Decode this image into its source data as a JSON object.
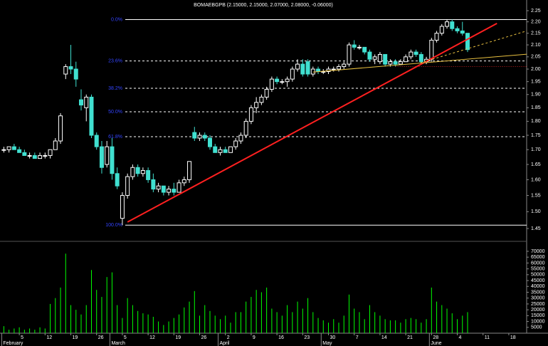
{
  "chart_data": {
    "type": "candlestick",
    "title": "BOMAEBGPB (2.15000, 2.15000, 2.07000, 2.08000, -0.06000)",
    "categories": [
      null,
      null,
      null,
      "5",
      null,
      null,
      null,
      null,
      "12",
      null,
      null,
      null,
      null,
      "19",
      null,
      null,
      null,
      null,
      "26",
      null,
      null,
      null,
      null,
      "5",
      null,
      null,
      null,
      null,
      "12",
      null,
      null,
      null,
      null,
      "19",
      null,
      null,
      null,
      null,
      "26",
      null,
      null,
      null,
      null,
      "2",
      null,
      null,
      null,
      null,
      "9",
      null,
      null,
      null,
      null,
      "16",
      null,
      null,
      null,
      null,
      "23",
      null,
      null,
      null,
      null,
      "30",
      null,
      null,
      null,
      null,
      "7",
      null,
      null,
      null,
      null,
      "14",
      null,
      null,
      null,
      null,
      "21",
      null,
      null,
      null,
      null,
      "28",
      null,
      null,
      null,
      null,
      "4",
      null,
      null,
      null,
      null,
      "11",
      null,
      null,
      null,
      null,
      "18",
      null,
      null,
      null,
      null
    ],
    "months": [
      "February",
      null,
      null,
      null,
      null,
      null,
      null,
      null,
      null,
      null,
      null,
      null,
      null,
      null,
      null,
      null,
      null,
      null,
      null,
      null,
      null,
      "March",
      null,
      null,
      null,
      null,
      null,
      null,
      null,
      null,
      null,
      null,
      null,
      null,
      null,
      null,
      null,
      null,
      null,
      null,
      null,
      null,
      "April",
      null,
      null,
      null,
      null,
      null,
      null,
      null,
      null,
      null,
      null,
      null,
      null,
      null,
      null,
      null,
      null,
      null,
      null,
      null,
      "May",
      null,
      null,
      null,
      null,
      null,
      null,
      null,
      null,
      null,
      null,
      null,
      null,
      null,
      null,
      null,
      null,
      null,
      null,
      null,
      null,
      "June",
      null,
      null,
      null,
      null,
      null,
      null,
      null,
      null,
      null,
      null,
      null,
      null,
      null,
      null,
      null
    ],
    "open": [
      1.7,
      1.7,
      1.71,
      1.7,
      1.69,
      1.68,
      1.68,
      1.67,
      1.68,
      1.68,
      1.7,
      1.73,
      1.98,
      2.01,
      2.0,
      1.88,
      1.85,
      1.89,
      1.75,
      1.71,
      1.65,
      1.71,
      1.62,
      1.48,
      1.55,
      1.61,
      1.64,
      1.62,
      1.63,
      1.6,
      1.57,
      1.58,
      1.56,
      1.57,
      1.56,
      1.59,
      1.6,
      1.76,
      1.74,
      1.75,
      1.74,
      1.71,
      1.69,
      1.7,
      1.69,
      1.71,
      1.73,
      1.75,
      1.8,
      1.85,
      1.87,
      1.89,
      1.92,
      1.96,
      1.95,
      1.95,
      1.96,
      2.0,
      2.02,
      2.03,
      1.98,
      2.0,
      1.99,
      1.99,
      2.0,
      2.0,
      2.01,
      2.02,
      2.1,
      2.09,
      2.09,
      2.07,
      2.04,
      2.03,
      2.06,
      2.02,
      2.03,
      2.02,
      2.03,
      2.05,
      2.07,
      2.06,
      2.03,
      2.04,
      2.12,
      2.15,
      2.18,
      2.2,
      2.17,
      2.16,
      2.15,
      null,
      null,
      null,
      null,
      null,
      null,
      null,
      null,
      null,
      null,
      null,
      null
    ],
    "high": [
      1.71,
      1.71,
      1.72,
      1.71,
      1.7,
      1.69,
      1.69,
      1.69,
      1.69,
      1.7,
      1.74,
      1.83,
      2.02,
      2.1,
      2.03,
      1.92,
      1.9,
      1.9,
      1.76,
      1.73,
      1.73,
      1.74,
      1.64,
      1.56,
      1.62,
      1.65,
      1.65,
      1.64,
      1.64,
      1.62,
      1.59,
      1.58,
      1.58,
      1.59,
      1.6,
      1.61,
      1.66,
      1.78,
      1.76,
      1.76,
      1.75,
      1.72,
      1.71,
      1.71,
      1.71,
      1.74,
      1.76,
      1.81,
      1.86,
      1.89,
      1.9,
      1.93,
      1.97,
      1.97,
      1.96,
      1.97,
      2.01,
      2.04,
      2.04,
      2.04,
      2.01,
      2.01,
      2.0,
      2.01,
      2.01,
      2.02,
      2.03,
      2.11,
      2.12,
      2.1,
      2.09,
      2.08,
      2.06,
      2.07,
      2.06,
      2.04,
      2.04,
      2.04,
      2.06,
      2.08,
      2.08,
      2.07,
      2.05,
      2.13,
      2.16,
      2.19,
      2.21,
      2.21,
      2.18,
      2.2,
      2.15,
      null,
      null,
      null,
      null,
      null,
      null,
      null,
      null,
      null,
      null,
      null,
      null
    ],
    "low": [
      1.69,
      1.69,
      1.7,
      1.69,
      1.68,
      1.67,
      1.67,
      1.67,
      1.67,
      1.67,
      1.7,
      1.72,
      1.96,
      1.98,
      1.93,
      1.84,
      1.8,
      1.74,
      1.7,
      1.62,
      1.64,
      1.6,
      1.57,
      1.46,
      1.54,
      1.6,
      1.61,
      1.61,
      1.59,
      1.56,
      1.56,
      1.55,
      1.55,
      1.55,
      1.56,
      1.58,
      1.59,
      1.73,
      1.73,
      1.73,
      1.7,
      1.69,
      1.68,
      1.69,
      1.69,
      1.7,
      1.72,
      1.74,
      1.79,
      1.83,
      1.86,
      1.88,
      1.91,
      1.94,
      1.94,
      1.93,
      1.95,
      1.99,
      1.97,
      1.97,
      1.97,
      1.98,
      1.98,
      1.98,
      1.99,
      1.99,
      2.0,
      2.01,
      2.08,
      2.08,
      2.06,
      2.03,
      2.02,
      2.02,
      2.01,
      2.01,
      2.01,
      2.02,
      2.03,
      2.04,
      2.05,
      2.02,
      2.02,
      2.03,
      2.11,
      2.14,
      2.17,
      2.16,
      2.15,
      2.14,
      2.07,
      null,
      null,
      null,
      null,
      null,
      null,
      null,
      null,
      null,
      null,
      null,
      null
    ],
    "close": [
      1.7,
      1.71,
      1.7,
      1.69,
      1.68,
      1.68,
      1.67,
      1.68,
      1.68,
      1.7,
      1.73,
      1.82,
      2.01,
      2.0,
      1.96,
      1.86,
      1.89,
      1.75,
      1.71,
      1.64,
      1.71,
      1.62,
      1.58,
      1.55,
      1.61,
      1.64,
      1.62,
      1.63,
      1.6,
      1.57,
      1.58,
      1.56,
      1.57,
      1.56,
      1.59,
      1.6,
      1.66,
      1.74,
      1.75,
      1.74,
      1.71,
      1.69,
      1.7,
      1.69,
      1.71,
      1.73,
      1.75,
      1.8,
      1.85,
      1.87,
      1.89,
      1.92,
      1.96,
      1.95,
      1.95,
      1.96,
      2.0,
      2.02,
      1.98,
      1.98,
      2.0,
      1.99,
      1.99,
      2.0,
      2.0,
      2.01,
      2.02,
      2.1,
      2.09,
      2.09,
      2.07,
      2.04,
      2.05,
      2.06,
      2.02,
      2.03,
      2.02,
      2.03,
      2.05,
      2.07,
      2.06,
      2.03,
      2.04,
      2.12,
      2.15,
      2.18,
      2.2,
      2.17,
      2.16,
      2.15,
      2.08,
      null,
      null,
      null,
      null,
      null,
      null,
      null,
      null,
      null,
      null,
      null,
      null
    ],
    "volume": [
      6000,
      3000,
      4000,
      5000,
      3000,
      4000,
      3000,
      5000,
      4000,
      25000,
      30000,
      39000,
      68000,
      24000,
      20000,
      16000,
      24000,
      54000,
      37000,
      31000,
      48000,
      52000,
      24000,
      13000,
      30000,
      24000,
      19000,
      17000,
      16000,
      14000,
      10000,
      7000,
      10000,
      13000,
      16000,
      22000,
      27000,
      36000,
      15000,
      24000,
      19000,
      15000,
      12000,
      15000,
      9000,
      18000,
      18000,
      27000,
      31000,
      37000,
      35000,
      39000,
      21000,
      18000,
      15000,
      24000,
      18000,
      27000,
      21000,
      30000,
      18000,
      13000,
      11000,
      9000,
      12000,
      9000,
      15000,
      33000,
      21000,
      18000,
      12000,
      24000,
      18000,
      15000,
      12000,
      11000,
      11000,
      9000,
      12000,
      13000,
      12000,
      9000,
      12000,
      39000,
      27000,
      24000,
      21000,
      17000,
      12000,
      15000,
      18000,
      null,
      null,
      null,
      null,
      null,
      null,
      null,
      null,
      null,
      null,
      null,
      null
    ],
    "up_color": "#ffffff",
    "down_color": "#40e0d0",
    "volume_color": "#00ff00",
    "log_scale": true,
    "ylim": [
      1.415,
      2.299
    ],
    "yticks": [
      1.45,
      {
        "value": 1.5,
        "label": "1.50"
      },
      1.55,
      {
        "value": 1.6,
        "label": "1.60"
      },
      1.65,
      {
        "value": 1.7,
        "label": "1.70"
      },
      1.75,
      {
        "value": 1.8,
        "label": "1.80"
      },
      1.85,
      {
        "value": 1.9,
        "label": "1.90"
      },
      1.95,
      {
        "value": 2,
        "label": "2.00"
      },
      2.05,
      {
        "value": 2.1,
        "label": "2.10"
      },
      2.15,
      {
        "value": 2.2,
        "label": "2.20"
      },
      2.25
    ],
    "volume_ylim": [
      0,
      77900
    ],
    "volume_yticks": [
      5000,
      10000,
      15000,
      20000,
      25000,
      30000,
      35000,
      40000,
      45000,
      50000,
      55000,
      60000,
      65000,
      70000
    ],
    "fib_levels": [
      {
        "label": "0.0%",
        "value": 2.21
      },
      {
        "label": "23.6%",
        "value": 2.033
      },
      {
        "label": "38.2%",
        "value": 1.924
      },
      {
        "label": "50.0%",
        "value": 1.835
      },
      {
        "label": "61.8%",
        "value": 1.745
      },
      {
        "label": "100.0%",
        "value": 1.46
      }
    ],
    "fib_color": "#3344ff",
    "trendlines": [
      {
        "x": [
          24,
          95.7
        ],
        "y": [
          1.469,
          2.193
        ],
        "color": "#ff2020",
        "dash": "none",
        "width": 2
      },
      {
        "x": [
          60,
          101.5
        ],
        "y": [
          1.988,
          2.061
        ],
        "color": "#e8c040",
        "dash": "none",
        "width": 1
      },
      {
        "x": [
          80.8,
          101.5
        ],
        "y": [
          2.025,
          2.16
        ],
        "color": "#e8c040",
        "dash": "3,3",
        "width": 1
      },
      {
        "x": [
          76,
          101.5
        ],
        "y": [
          2.01,
          2.01
        ],
        "color": "#c02020",
        "dash": "1,2",
        "width": 1
      }
    ]
  }
}
